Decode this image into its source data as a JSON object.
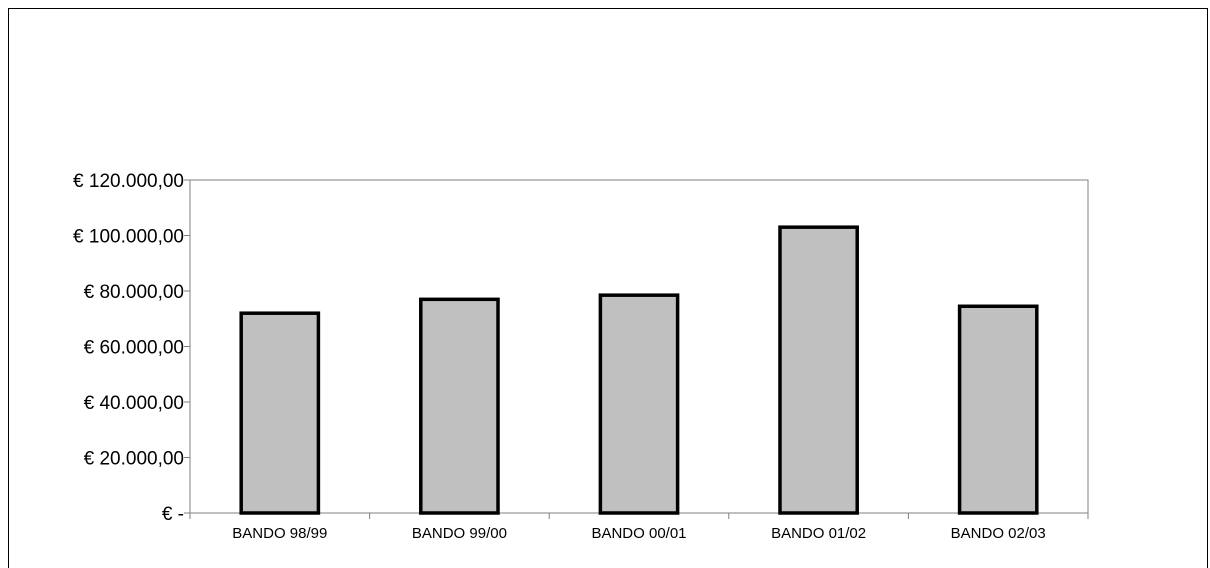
{
  "chart_data": {
    "type": "bar",
    "title": "",
    "xlabel": "",
    "ylabel": "",
    "categories": [
      "BANDO 98/99",
      "BANDO 99/00",
      "BANDO 00/01",
      "BANDO 01/02",
      "BANDO 02/03"
    ],
    "values": [
      72000,
      77000,
      78500,
      103000,
      74500
    ],
    "ylim": [
      0,
      120000
    ],
    "y_ticks": [
      0,
      20000,
      40000,
      60000,
      80000,
      100000,
      120000
    ],
    "y_tick_labels": [
      "€ -",
      "€ 20.000,00",
      "€ 40.000,00",
      "€ 60.000,00",
      "€ 80.000,00",
      "€ 100.000,00",
      "€ 120.000,00"
    ],
    "grid": false,
    "legend": "none",
    "colors": {
      "bar_fill": "#c0c0c0",
      "bar_stroke": "#000000",
      "plot_border": "#808080",
      "axis": "#808080"
    }
  }
}
